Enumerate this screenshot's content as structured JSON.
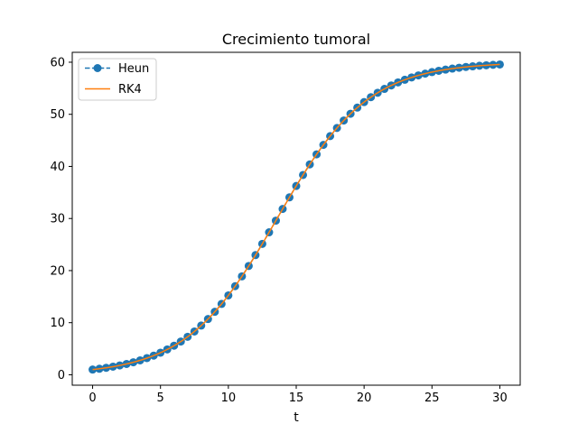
{
  "chart_data": {
    "type": "line",
    "title": "Crecimiento tumoral",
    "xlabel": "t",
    "ylabel": "",
    "xlim": [
      -1.5,
      31.5
    ],
    "ylim": [
      -2.0,
      61.9
    ],
    "xticks": [
      0,
      5,
      10,
      15,
      20,
      25,
      30
    ],
    "yticks": [
      0,
      10,
      20,
      30,
      40,
      50,
      60
    ],
    "grid": false,
    "legend_position": "top-left",
    "model": {
      "y0": 1,
      "K": 60,
      "r": 0.3
    },
    "series": [
      {
        "name": "Heun",
        "style": "dashed-with-markers",
        "color": "#1f77b4",
        "x_start": 0,
        "x_end": 30,
        "n_points": 61
      },
      {
        "name": "RK4",
        "style": "solid",
        "color": "#ff7f0e",
        "x_start": 0,
        "x_end": 30,
        "n_points": 301
      }
    ]
  }
}
